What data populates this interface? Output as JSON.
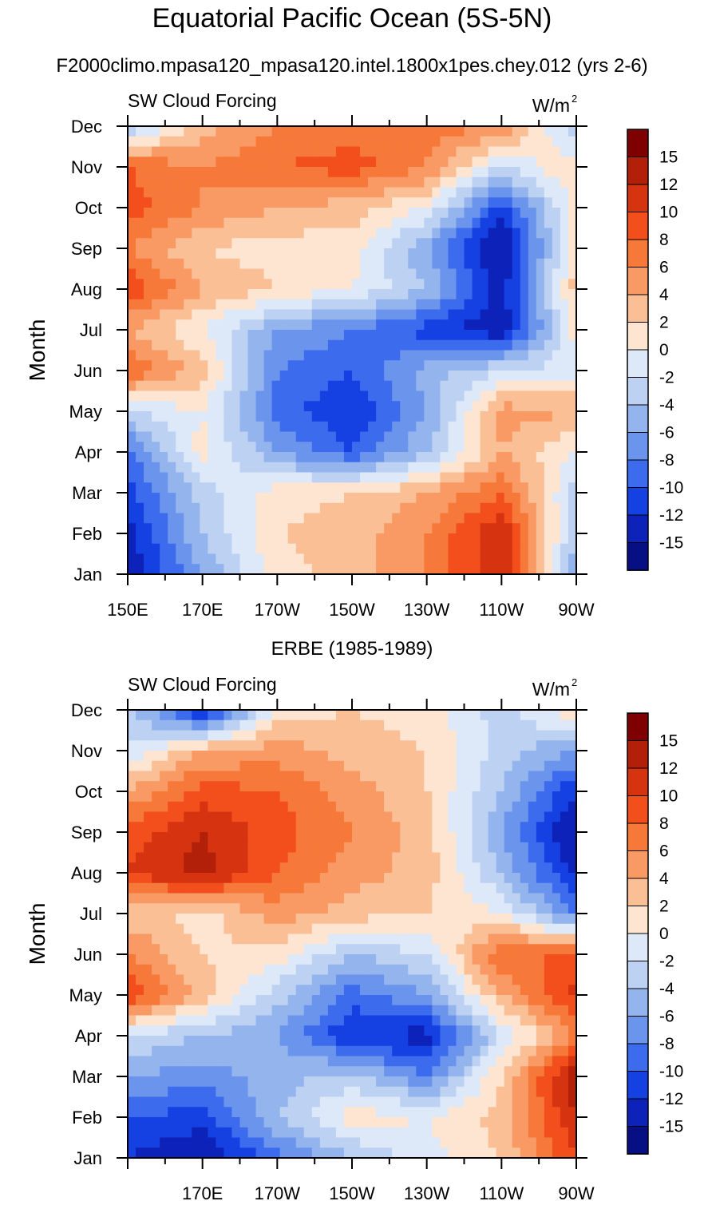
{
  "chart_data": [
    {
      "type": "heatmap",
      "title": "Equatorial Pacific Ocean (5S-5N)",
      "subtitle": "F2000climo.mpasa120_mpasa120.intel.1800x1pes.chey.012 (yrs 2-6)",
      "left_label": "SW Cloud Forcing",
      "right_label": "W/m",
      "right_label_sup": "2",
      "ylabel": "Month",
      "xlabel": "",
      "x_ticks": [
        "150E",
        "170E",
        "170W",
        "150W",
        "130W",
        "110W",
        "90W"
      ],
      "x_range_deg_east": [
        150,
        270
      ],
      "y_ticks": [
        "Jan",
        "Feb",
        "Mar",
        "Apr",
        "May",
        "Jun",
        "Jul",
        "Aug",
        "Sep",
        "Oct",
        "Nov",
        "Dec"
      ],
      "x": [
        150,
        170,
        190,
        210,
        230,
        250,
        270
      ],
      "z": [
        [
          -14,
          -6,
          1,
          3,
          6,
          12,
          -6
        ],
        [
          -13,
          -4,
          2,
          3,
          6,
          12,
          -4
        ],
        [
          -11,
          -3,
          1,
          2,
          4,
          8,
          -3
        ],
        [
          -9,
          1,
          -6,
          -10,
          -4,
          4,
          0
        ],
        [
          -2,
          0,
          -9,
          -12,
          -6,
          5,
          4
        ],
        [
          8,
          3,
          -8,
          -10,
          -5,
          -2,
          -1
        ],
        [
          4,
          0,
          -6,
          -8,
          -11,
          -14,
          1
        ],
        [
          10,
          4,
          2,
          0,
          -4,
          -13,
          3
        ],
        [
          6,
          2,
          1,
          1,
          -6,
          -15,
          2
        ],
        [
          9,
          6,
          4,
          3,
          0,
          -11,
          1
        ],
        [
          8,
          6,
          8,
          9,
          6,
          -2,
          2
        ],
        [
          -4,
          3,
          6,
          7,
          7,
          6,
          -4
        ]
      ]
    },
    {
      "type": "heatmap",
      "title": "ERBE (1985-1989)",
      "left_label": "SW Cloud Forcing",
      "right_label": "W/m",
      "right_label_sup": "2",
      "ylabel": "Month",
      "xlabel": "",
      "x_ticks": [
        "170E",
        "170W",
        "150W",
        "130W",
        "110W",
        "90W"
      ],
      "x_range_deg_east": [
        150,
        270
      ],
      "y_ticks": [
        "Jan",
        "Feb",
        "Mar",
        "Apr",
        "May",
        "Jun",
        "Jul",
        "Aug",
        "Sep",
        "Oct",
        "Nov",
        "Dec"
      ],
      "x": [
        150,
        170,
        190,
        210,
        230,
        250,
        270
      ],
      "z": [
        [
          -12,
          -14,
          -9,
          -4,
          -1,
          2,
          10
        ],
        [
          -10,
          -11,
          -4,
          1,
          0,
          3,
          12
        ],
        [
          -6,
          -7,
          -5,
          -3,
          -8,
          2,
          14
        ],
        [
          -2,
          -4,
          -6,
          -12,
          -13,
          -2,
          6
        ],
        [
          10,
          3,
          -3,
          -9,
          -6,
          4,
          11
        ],
        [
          6,
          2,
          1,
          -4,
          -2,
          8,
          8
        ],
        [
          3,
          1,
          5,
          3,
          2,
          0,
          -8
        ],
        [
          10,
          13,
          8,
          5,
          3,
          -4,
          -13
        ],
        [
          9,
          12,
          9,
          6,
          3,
          -6,
          -15
        ],
        [
          4,
          9,
          8,
          5,
          2,
          -4,
          -12
        ],
        [
          -2,
          4,
          5,
          3,
          2,
          -3,
          -6
        ],
        [
          -3,
          -13,
          1,
          2,
          1,
          -3,
          2
        ]
      ]
    }
  ],
  "colorbar": {
    "labels": [
      "15",
      "12",
      "10",
      "8",
      "6",
      "4",
      "2",
      "0",
      "-2",
      "-4",
      "-6",
      "-8",
      "-10",
      "-12",
      "-15"
    ],
    "levels": [
      15,
      12,
      10,
      8,
      6,
      4,
      2,
      0,
      -2,
      -4,
      -6,
      -8,
      -10,
      -12,
      -15
    ],
    "colors": [
      "#7f0000",
      "#b32009",
      "#d63311",
      "#f24f1c",
      "#f7793a",
      "#f99a65",
      "#fbbf96",
      "#fde5d2",
      "#dde9f8",
      "#bdd1f2",
      "#94b4ee",
      "#6b95ec",
      "#3c6ced",
      "#1540e2",
      "#0c22b8",
      "#070f85"
    ]
  }
}
